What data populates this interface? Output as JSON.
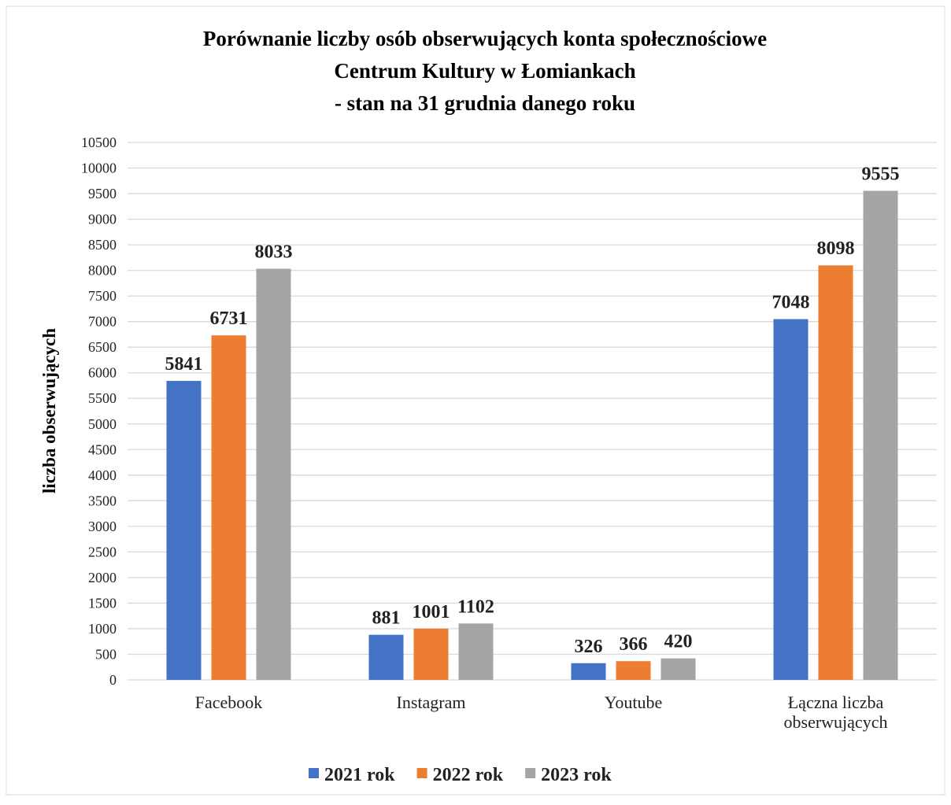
{
  "chart_data": {
    "type": "bar",
    "title": [
      "Porównanie liczby osób obserwujących konta społecznościowe",
      "Centrum Kultury w Łomiankach",
      "- stan na 31 grudnia danego roku"
    ],
    "y_label": "liczba obserwujących",
    "categories": [
      "Facebook",
      "Instagram",
      "Youtube",
      "Łączna liczba obserwujących"
    ],
    "series": [
      {
        "name": "2021 rok",
        "color": "#4472c4",
        "values": [
          5841,
          881,
          326,
          7048
        ]
      },
      {
        "name": "2022 rok",
        "color": "#ed7d31",
        "values": [
          6731,
          1001,
          366,
          8098
        ]
      },
      {
        "name": "2023 rok",
        "color": "#a5a5a5",
        "values": [
          8033,
          1102,
          420,
          9555
        ]
      }
    ],
    "ylim": [
      0,
      10500
    ],
    "yticks": [
      0,
      500,
      1000,
      1500,
      2000,
      2500,
      3000,
      3500,
      4000,
      4500,
      5000,
      5500,
      6000,
      6500,
      7000,
      7500,
      8000,
      8500,
      9000,
      9500,
      10000,
      10500
    ],
    "grid": true,
    "legend": "bottom"
  }
}
